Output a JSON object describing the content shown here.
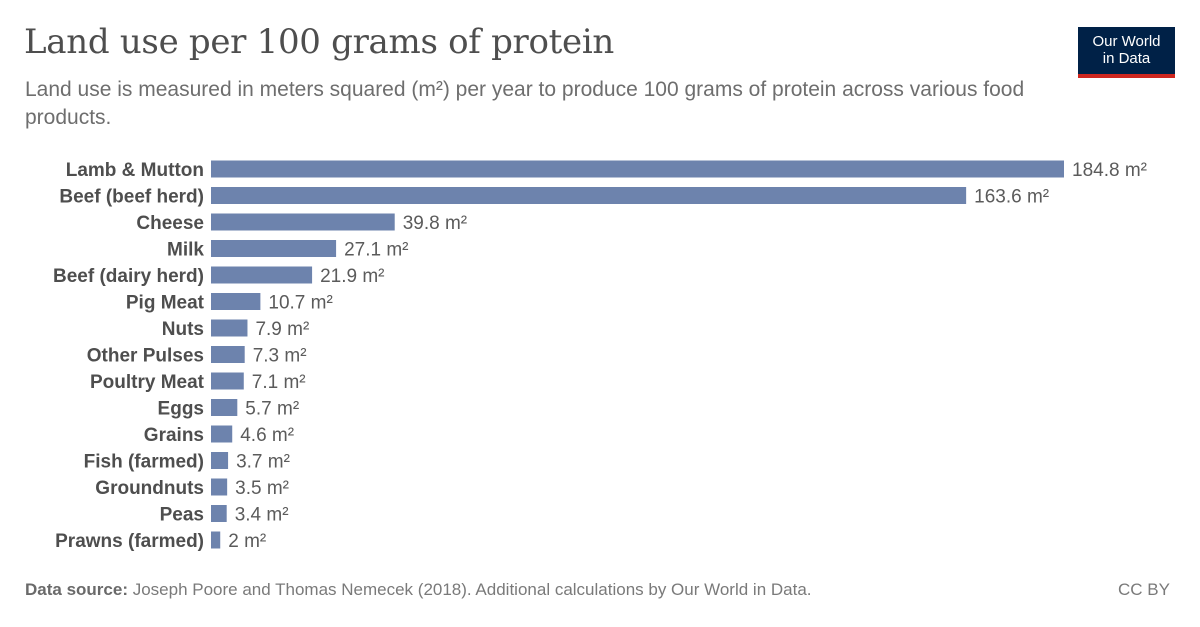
{
  "header": {
    "title": "Land use per 100 grams of protein",
    "subtitle": "Land use is measured in meters squared (m²) per year to produce 100 grams of protein across various food products."
  },
  "logo": {
    "line1": "Our World",
    "line2": "in Data"
  },
  "footer": {
    "source_label": "Data source:",
    "source_text": "Joseph Poore and Thomas Nemecek (2018). Additional calculations by Our World in Data.",
    "license": "CC BY"
  },
  "colors": {
    "bar": "#6d83ad",
    "logo_bg": "#002147",
    "logo_accent": "#ce261e"
  },
  "chart_data": {
    "type": "bar",
    "orientation": "horizontal",
    "title": "Land use per 100 grams of protein",
    "unit": "m²",
    "categories": [
      "Lamb & Mutton",
      "Beef (beef herd)",
      "Cheese",
      "Milk",
      "Beef (dairy herd)",
      "Pig Meat",
      "Nuts",
      "Other Pulses",
      "Poultry Meat",
      "Eggs",
      "Grains",
      "Fish (farmed)",
      "Groundnuts",
      "Peas",
      "Prawns (farmed)"
    ],
    "values": [
      184.8,
      163.6,
      39.8,
      27.1,
      21.9,
      10.7,
      7.9,
      7.3,
      7.1,
      5.7,
      4.6,
      3.7,
      3.5,
      3.4,
      2
    ],
    "value_labels": [
      "184.8 m²",
      "163.6 m²",
      "39.8 m²",
      "27.1 m²",
      "21.9 m²",
      "10.7 m²",
      "7.9 m²",
      "7.3 m²",
      "7.1 m²",
      "5.7 m²",
      "4.6 m²",
      "3.7 m²",
      "3.5 m²",
      "3.4 m²",
      "2 m²"
    ],
    "xlim": [
      0,
      184.8
    ],
    "grid": false,
    "legend": "none"
  }
}
